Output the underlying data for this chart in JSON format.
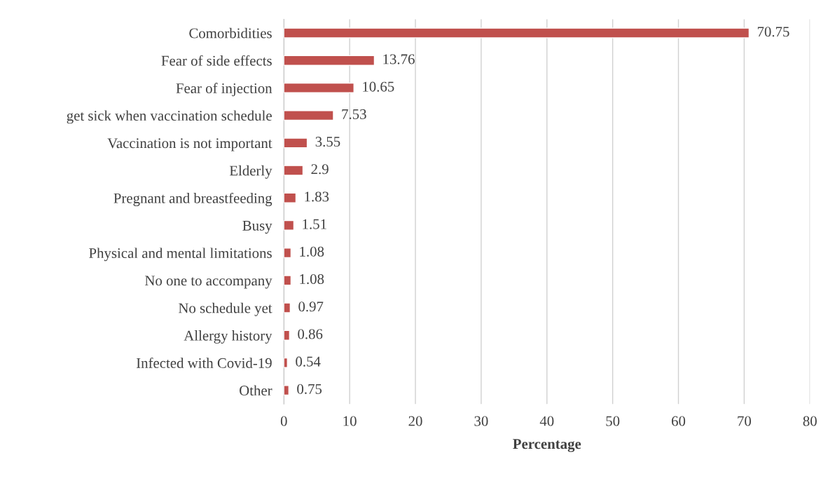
{
  "chart_data": {
    "type": "bar",
    "orientation": "horizontal",
    "xlabel": "Percentage",
    "categories": [
      "Comorbidities",
      "Fear of side effects",
      "Fear of injection",
      "get sick when vaccination schedule",
      "Vaccination is not important",
      "Elderly",
      "Pregnant and breastfeeding",
      "Busy",
      "Physical and mental limitations",
      "No one to accompany",
      "No schedule yet",
      "Allergy history",
      "Infected with Covid-19",
      "Other"
    ],
    "values": [
      70.75,
      13.76,
      10.65,
      7.53,
      3.55,
      2.9,
      1.83,
      1.51,
      1.08,
      1.08,
      0.97,
      0.86,
      0.54,
      0.75
    ],
    "color": "#c0504d",
    "xlim": [
      0,
      80
    ],
    "xticks": [
      0,
      10,
      20,
      30,
      40,
      50,
      60,
      70,
      80
    ],
    "grid": "x",
    "data_labels": true
  }
}
